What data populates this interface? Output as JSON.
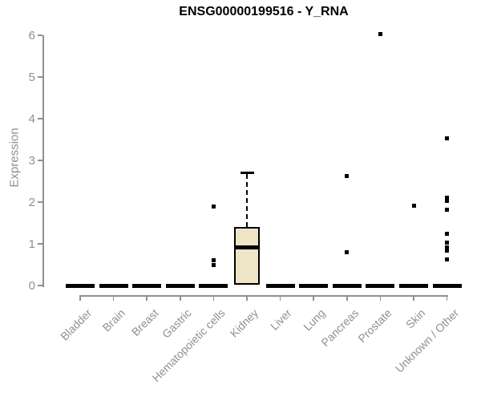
{
  "chart_data": {
    "type": "boxplot",
    "title": "ENSG00000199516 - Y_RNA",
    "ylabel": "Expression",
    "xlabel": "",
    "ylim": [
      0,
      6
    ],
    "yticks": [
      0,
      1,
      2,
      3,
      4,
      5,
      6
    ],
    "grid": false,
    "legend": "none",
    "categories": [
      "Bladder",
      "Brain",
      "Breast",
      "Gastric",
      "Hematopoietic cells",
      "Kidney",
      "Liver",
      "Lung",
      "Pancreas",
      "Prostate",
      "Skin",
      "Unknown / Other"
    ],
    "boxes": [
      {
        "category": "Bladder",
        "whisker_low": 0,
        "q1": 0,
        "median": 0,
        "q3": 0,
        "whisker_high": 0,
        "outliers": []
      },
      {
        "category": "Brain",
        "whisker_low": 0,
        "q1": 0,
        "median": 0,
        "q3": 0,
        "whisker_high": 0,
        "outliers": []
      },
      {
        "category": "Breast",
        "whisker_low": 0,
        "q1": 0,
        "median": 0,
        "q3": 0,
        "whisker_high": 0,
        "outliers": []
      },
      {
        "category": "Gastric",
        "whisker_low": 0,
        "q1": 0,
        "median": 0,
        "q3": 0,
        "whisker_high": 0,
        "outliers": []
      },
      {
        "category": "Hematopoietic cells",
        "whisker_low": 0,
        "q1": 0,
        "median": 0,
        "q3": 0,
        "whisker_high": 0,
        "outliers": [
          1.9,
          0.6,
          0.49
        ]
      },
      {
        "category": "Kidney",
        "whisker_low": 0.02,
        "q1": 0.02,
        "median": 0.92,
        "q3": 1.4,
        "whisker_high": 2.71,
        "outliers": []
      },
      {
        "category": "Liver",
        "whisker_low": 0,
        "q1": 0,
        "median": 0,
        "q3": 0,
        "whisker_high": 0,
        "outliers": []
      },
      {
        "category": "Lung",
        "whisker_low": 0,
        "q1": 0,
        "median": 0,
        "q3": 0,
        "whisker_high": 0,
        "outliers": []
      },
      {
        "category": "Pancreas",
        "whisker_low": 0,
        "q1": 0,
        "median": 0,
        "q3": 0,
        "whisker_high": 0,
        "outliers": [
          2.63,
          0.79
        ]
      },
      {
        "category": "Prostate",
        "whisker_low": 0,
        "q1": 0,
        "median": 0,
        "q3": 0,
        "whisker_high": 0,
        "outliers": [
          6.03
        ]
      },
      {
        "category": "Skin",
        "whisker_low": 0,
        "q1": 0,
        "median": 0,
        "q3": 0,
        "whisker_high": 0,
        "outliers": [
          1.92
        ]
      },
      {
        "category": "Unknown / Other",
        "whisker_low": 0,
        "q1": 0,
        "median": 0,
        "q3": 0,
        "whisker_high": 0,
        "outliers": [
          3.52,
          2.1,
          2.02,
          1.81,
          1.25,
          1.02,
          0.92,
          0.83,
          0.63
        ]
      }
    ],
    "colors": {
      "box_fill": "#EDE5C6",
      "box_border": "#000000",
      "median": "#000000",
      "outlier": "#000000",
      "axis": "#8F9191",
      "tick_labels": "#8F9191",
      "title": "#000000",
      "background": "#FFFFFF"
    }
  }
}
